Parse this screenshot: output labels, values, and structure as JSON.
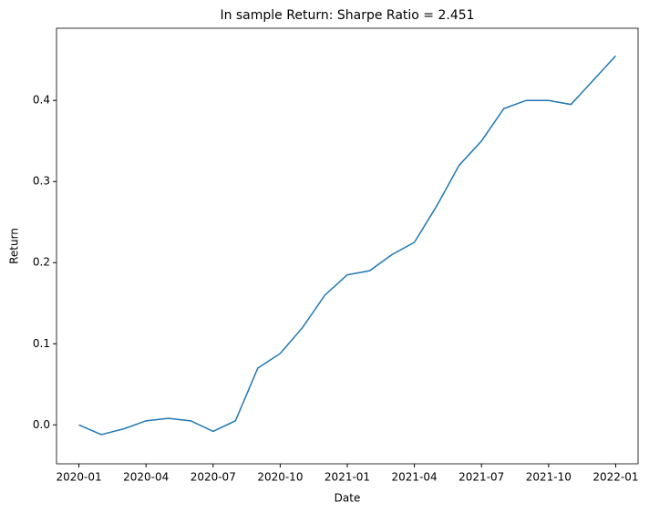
{
  "chart_data": {
    "type": "line",
    "title": "In sample Return: Sharpe Ratio = 2.451",
    "x_label": "Date",
    "y_label": "Return",
    "x": [
      "2020-01",
      "2020-02",
      "2020-03",
      "2020-04",
      "2020-05",
      "2020-06",
      "2020-07",
      "2020-08",
      "2020-09",
      "2020-10",
      "2020-11",
      "2020-12",
      "2021-01",
      "2021-02",
      "2021-03",
      "2021-04",
      "2021-05",
      "2021-06",
      "2021-07",
      "2021-08",
      "2021-09",
      "2021-10",
      "2021-11",
      "2021-12",
      "2022-01"
    ],
    "series": [
      {
        "name": "Return",
        "color": "#1f77b4",
        "values": [
          0.0,
          -0.012,
          -0.005,
          0.005,
          0.008,
          0.005,
          -0.008,
          0.005,
          0.07,
          0.088,
          0.12,
          0.16,
          0.185,
          0.19,
          0.21,
          0.225,
          0.27,
          0.32,
          0.35,
          0.39,
          0.4,
          0.4,
          0.395,
          0.425,
          0.455
        ]
      }
    ],
    "xlim": [
      "2019-12",
      "2022-02"
    ],
    "xticks": [
      "2020-01",
      "2020-04",
      "2020-07",
      "2020-10",
      "2021-01",
      "2021-04",
      "2021-07",
      "2021-10",
      "2022-01"
    ],
    "ylim": [
      -0.048,
      0.489
    ],
    "yticks": [
      {
        "value": 0,
        "label": "0.0"
      },
      {
        "value": 0.1,
        "label": "0.1"
      },
      {
        "value": 0.2,
        "label": "0.2"
      },
      {
        "value": 0.3,
        "label": "0.3"
      },
      {
        "value": 0.4,
        "label": "0.4"
      }
    ],
    "grid": false
  }
}
